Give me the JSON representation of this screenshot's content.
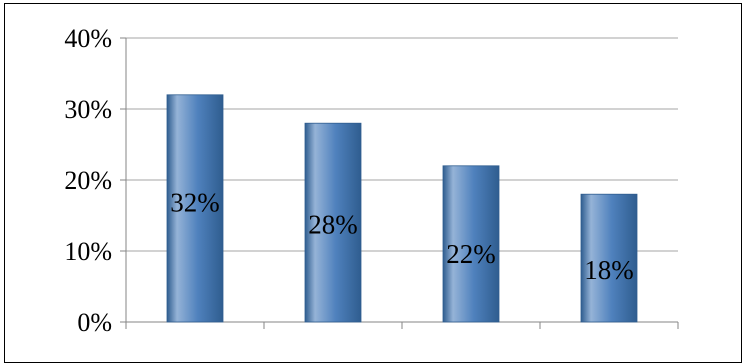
{
  "chart_data": {
    "type": "bar",
    "categories": [
      "",
      "",
      "",
      ""
    ],
    "values": [
      32,
      28,
      22,
      18
    ],
    "data_labels": [
      "32%",
      "28%",
      "22%",
      "18%"
    ],
    "y_ticks": [
      0,
      10,
      20,
      30,
      40
    ],
    "y_tick_labels": [
      "0%",
      "10%",
      "20%",
      "30%",
      "40%"
    ],
    "ylim": [
      0,
      40
    ],
    "grid": true,
    "legend": "none",
    "title": "",
    "xlabel": "",
    "ylabel": "",
    "colors": {
      "bar_fill": "#4f81bd",
      "bar_light": "#95b3d7",
      "bar_dark": "#2f5d8f",
      "grid": "#a6a6a6",
      "axis": "#868686"
    }
  }
}
